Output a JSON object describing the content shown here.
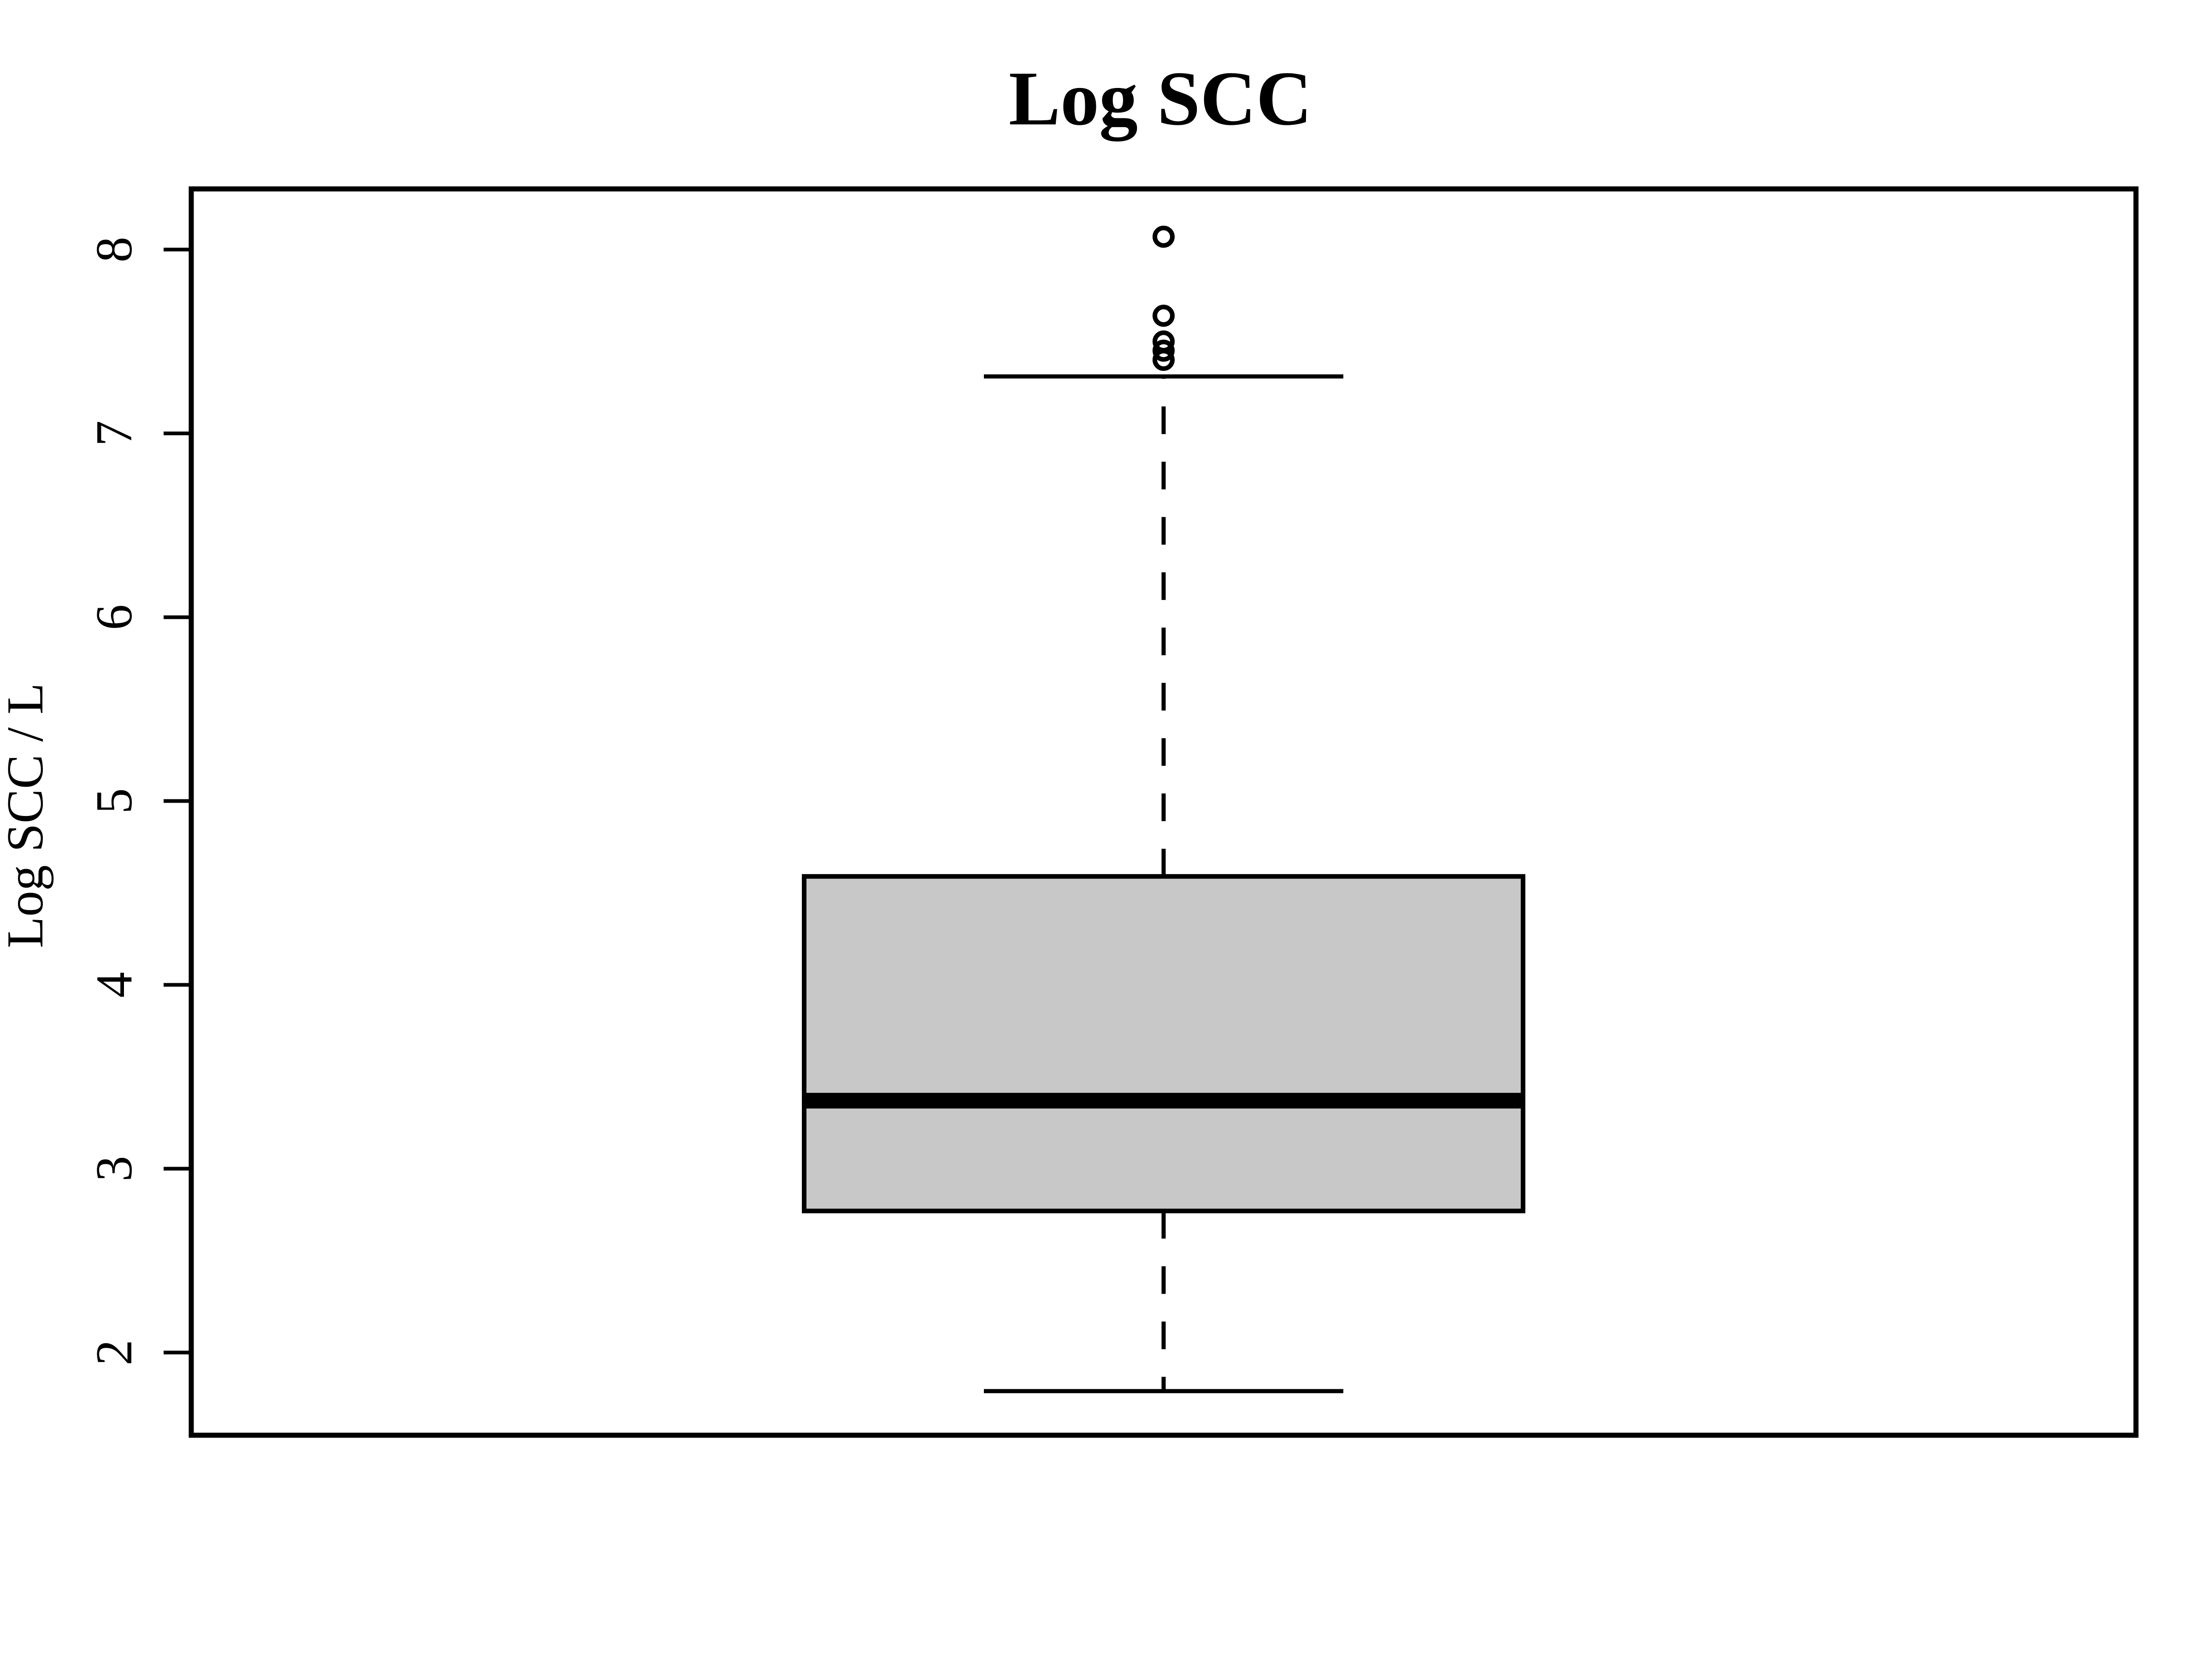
{
  "chart_data": {
    "type": "box",
    "title": "Log SCC",
    "xlabel": "",
    "ylabel": "Log SCC / L",
    "ylim": [
      1.55,
      8.33
    ],
    "yticks": [
      2,
      3,
      4,
      5,
      6,
      7,
      8
    ],
    "grid": false,
    "legend": "none",
    "box": {
      "whisker_low": 1.79,
      "q1": 2.77,
      "median": 3.37,
      "q3": 4.59,
      "whisker_high": 7.31,
      "outliers": [
        7.4,
        7.45,
        7.5,
        7.64,
        8.07
      ]
    },
    "colors": {
      "box_fill": "#c8c8c8",
      "line": "#000000",
      "background": "#ffffff"
    }
  }
}
